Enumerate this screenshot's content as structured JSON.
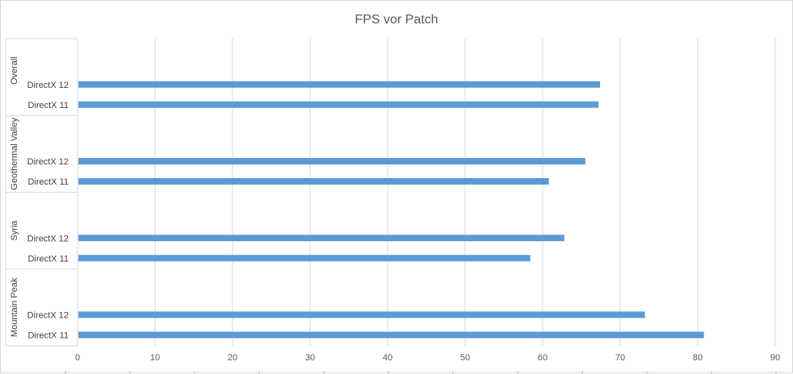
{
  "chart_data": {
    "type": "bar",
    "orientation": "horizontal",
    "title": "FPS vor Patch",
    "groups": [
      {
        "name": "Overall",
        "bars": [
          {
            "label": "DirectX 12",
            "value": 67.4
          },
          {
            "label": "DirectX 11",
            "value": 67.2
          }
        ]
      },
      {
        "name": "Geothermal Valley",
        "bars": [
          {
            "label": "DirectX 12",
            "value": 65.5
          },
          {
            "label": "DirectX 11",
            "value": 60.8
          }
        ]
      },
      {
        "name": "Syria",
        "bars": [
          {
            "label": "DirectX 12",
            "value": 62.8
          },
          {
            "label": "DirectX 11",
            "value": 58.4
          }
        ]
      },
      {
        "name": "Mountain Peak",
        "bars": [
          {
            "label": "DirectX 12",
            "value": 73.2
          },
          {
            "label": "DirectX 11",
            "value": 80.8
          }
        ]
      }
    ],
    "xlim": [
      0,
      90
    ],
    "xticks": [
      0,
      10,
      20,
      30,
      40,
      50,
      60,
      70,
      80,
      90
    ],
    "grid": true,
    "legend": "none",
    "bar_color": "#5b9bd5",
    "grid_color": "#d9d9d9"
  }
}
